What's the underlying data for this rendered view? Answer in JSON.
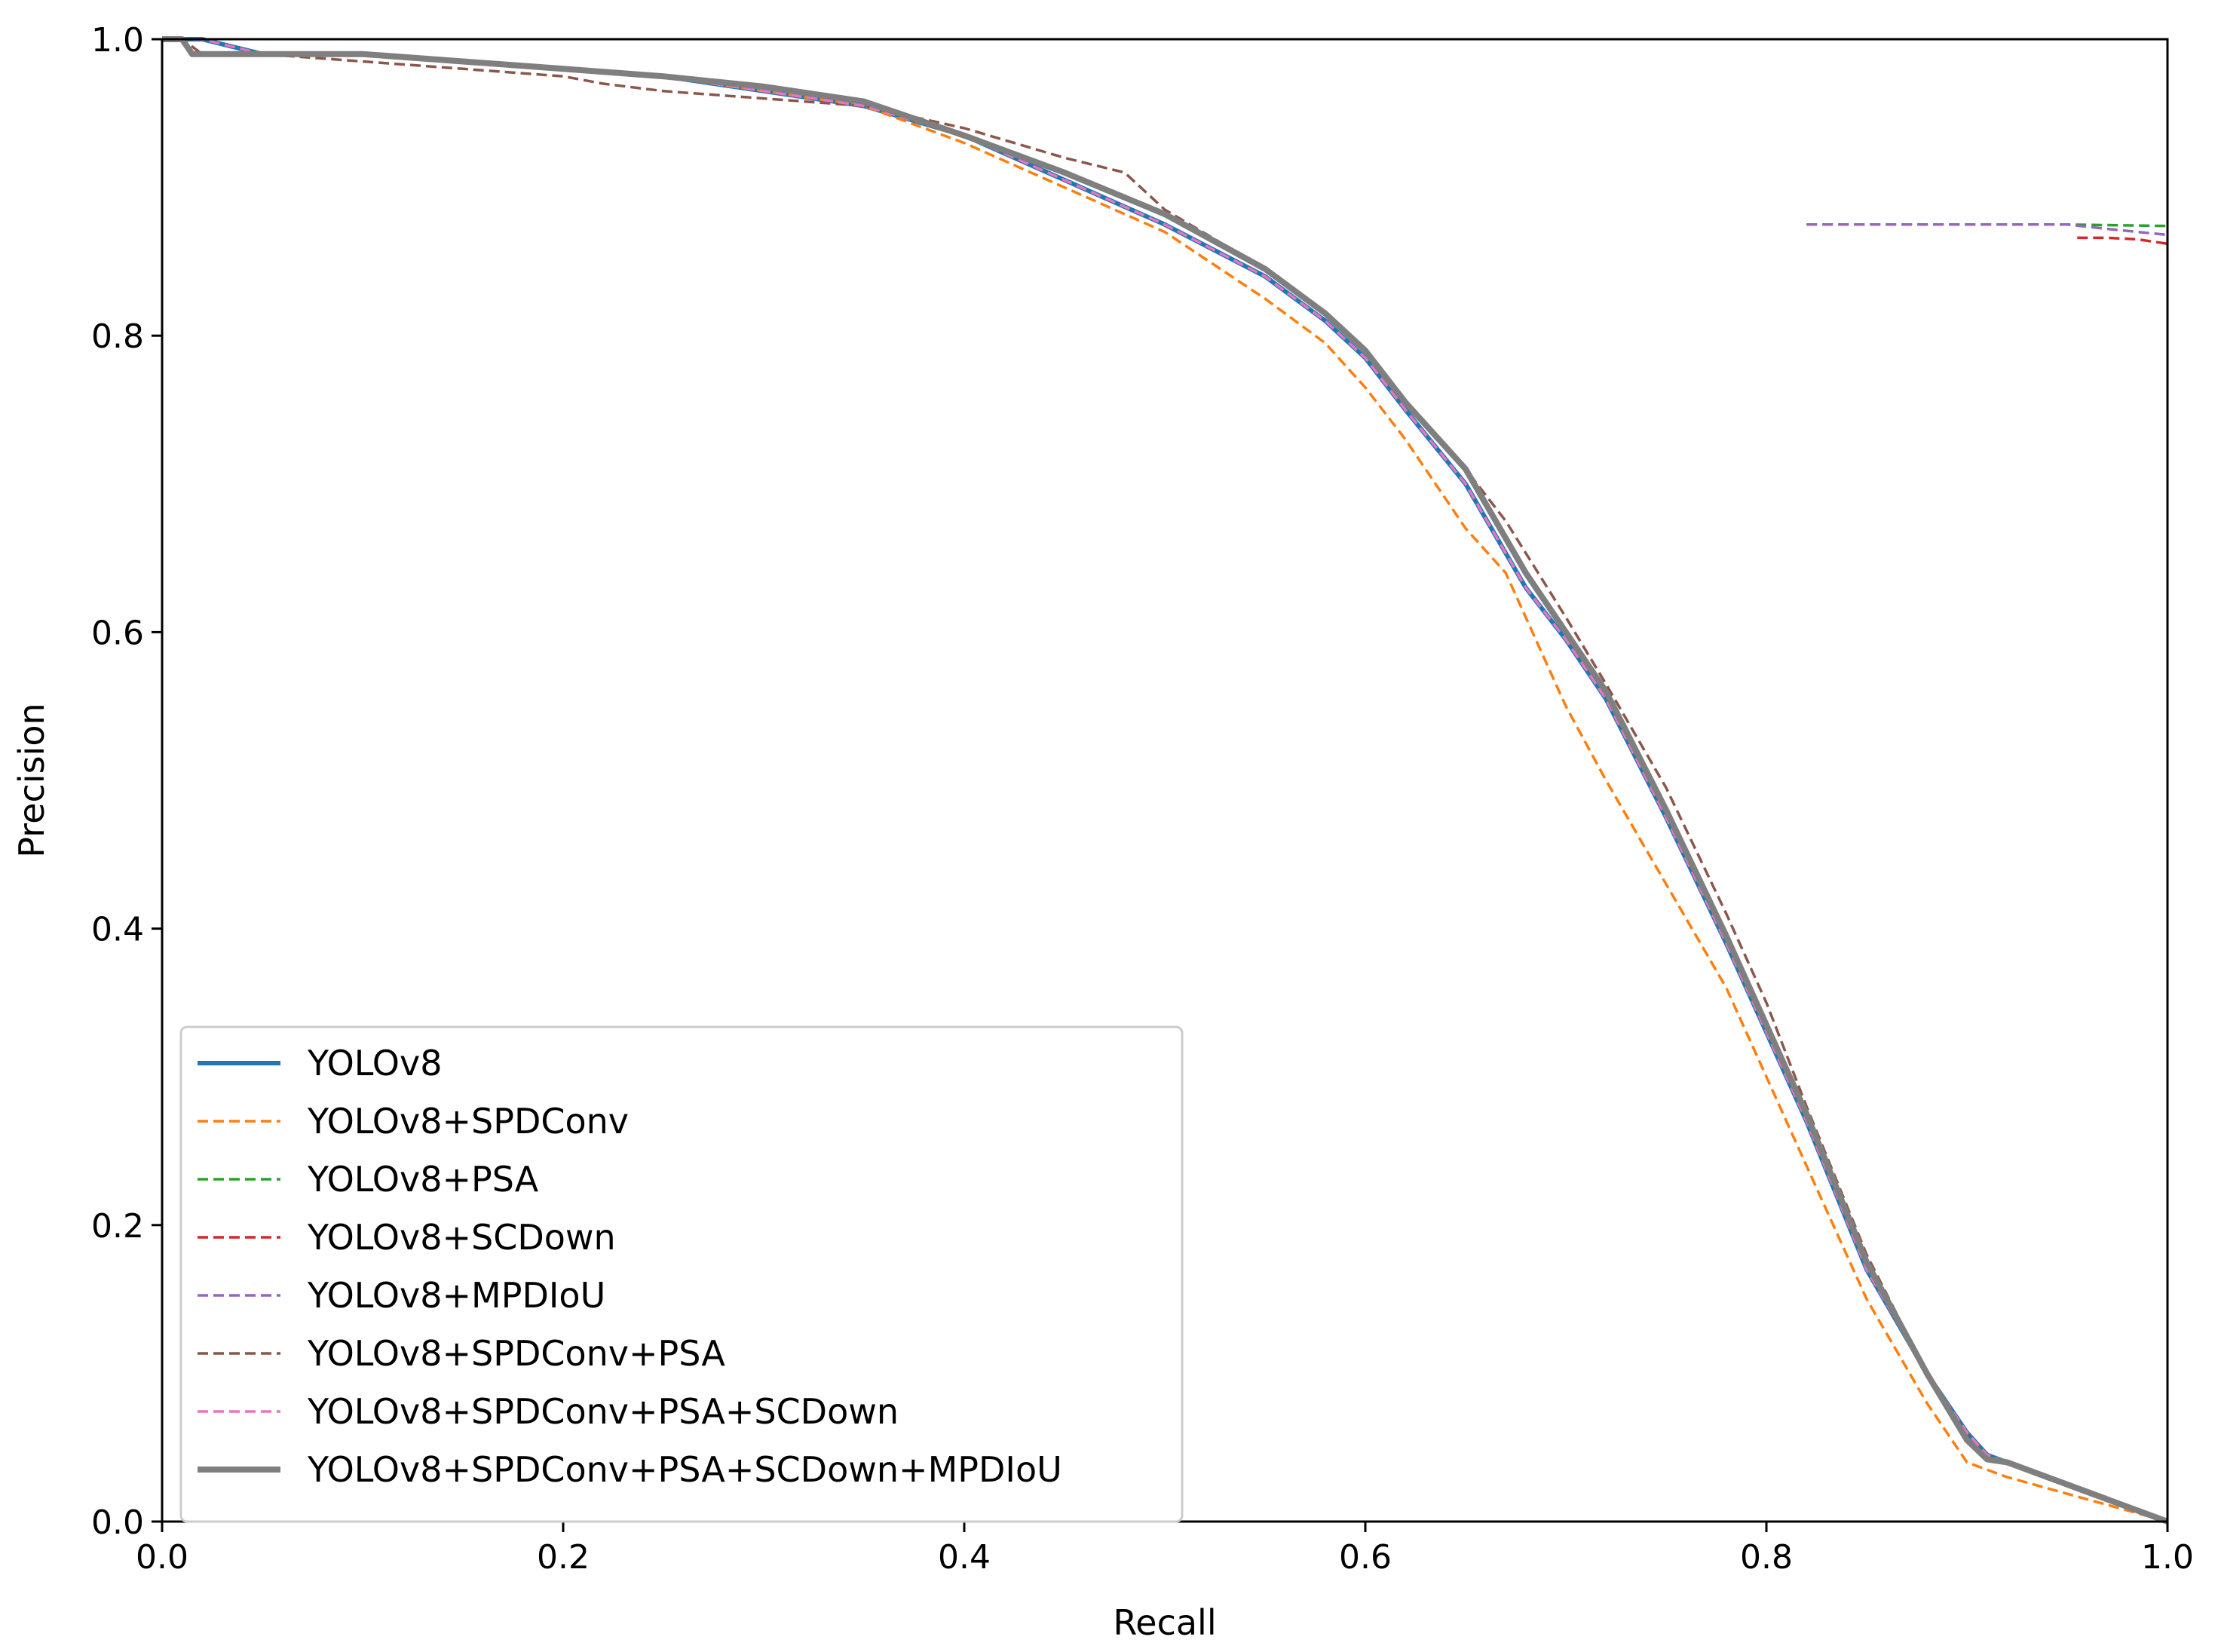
{
  "chart_data": {
    "type": "line",
    "title": "",
    "xlabel": "Recall",
    "ylabel": "Precision",
    "xlim": [
      0.0,
      1.0
    ],
    "ylim": [
      0.0,
      1.0
    ],
    "xticks": [
      "0.0",
      "0.2",
      "0.4",
      "0.6",
      "0.8",
      "1.0"
    ],
    "yticks": [
      "0.0",
      "0.2",
      "0.4",
      "0.6",
      "0.8",
      "1.0"
    ],
    "grid": false,
    "legend_position": "lower-left",
    "series": [
      {
        "name": "YOLOv8",
        "color": "#1f77b4",
        "style": "solid",
        "x": [
          0.0,
          0.01,
          0.02,
          0.05,
          0.1,
          0.15,
          0.2,
          0.25,
          0.3,
          0.35,
          0.4,
          0.45,
          0.5,
          0.55,
          0.58,
          0.6,
          0.62,
          0.65,
          0.68,
          0.7,
          0.72,
          0.75,
          0.78,
          0.8,
          0.82,
          0.85,
          0.88,
          0.9,
          0.91,
          0.92,
          1.0
        ],
        "y": [
          1.0,
          1.0,
          1.0,
          0.99,
          0.99,
          0.985,
          0.98,
          0.975,
          0.965,
          0.955,
          0.935,
          0.905,
          0.875,
          0.84,
          0.81,
          0.785,
          0.75,
          0.7,
          0.63,
          0.595,
          0.555,
          0.475,
          0.39,
          0.33,
          0.27,
          0.17,
          0.1,
          0.06,
          0.045,
          0.04,
          0.0
        ]
      },
      {
        "name": "YOLOv8+SPDConv",
        "color": "#ff7f0e",
        "style": "dashed",
        "x": [
          0.0,
          0.01,
          0.02,
          0.05,
          0.1,
          0.15,
          0.2,
          0.25,
          0.3,
          0.35,
          0.4,
          0.45,
          0.5,
          0.55,
          0.58,
          0.6,
          0.62,
          0.65,
          0.67,
          0.7,
          0.72,
          0.75,
          0.78,
          0.8,
          0.82,
          0.85,
          0.88,
          0.9,
          0.92,
          1.0
        ],
        "y": [
          1.0,
          1.0,
          0.99,
          0.99,
          0.99,
          0.985,
          0.98,
          0.975,
          0.965,
          0.955,
          0.93,
          0.9,
          0.87,
          0.825,
          0.795,
          0.765,
          0.73,
          0.67,
          0.64,
          0.55,
          0.5,
          0.43,
          0.36,
          0.3,
          0.24,
          0.15,
          0.08,
          0.04,
          0.03,
          0.0
        ]
      },
      {
        "name": "YOLOv8+PSA",
        "color": "#2ca02c",
        "style": "dashed",
        "x": [
          0.82,
          0.85,
          0.9,
          0.95,
          1.0
        ],
        "y": [
          0.875,
          0.875,
          0.875,
          0.875,
          0.874
        ]
      },
      {
        "name": "YOLOv8+SCDown",
        "color": "#d62728",
        "style": "dashed",
        "x": [
          0.955,
          0.97,
          0.985,
          1.0
        ],
        "y": [
          0.866,
          0.866,
          0.865,
          0.862
        ]
      },
      {
        "name": "YOLOv8+MPDIoU",
        "color": "#9467bd",
        "style": "dashed",
        "x": [
          0.82,
          0.85,
          0.9,
          0.95,
          0.97,
          1.0
        ],
        "y": [
          0.875,
          0.875,
          0.875,
          0.875,
          0.872,
          0.868
        ]
      },
      {
        "name": "YOLOv8+SPDConv+PSA",
        "color": "#8c564b",
        "style": "dashed",
        "x": [
          0.0,
          0.01,
          0.02,
          0.05,
          0.1,
          0.15,
          0.2,
          0.22,
          0.25,
          0.3,
          0.35,
          0.4,
          0.45,
          0.48,
          0.5,
          0.55,
          0.58,
          0.6,
          0.62,
          0.65,
          0.67,
          0.7,
          0.72,
          0.75,
          0.78,
          0.8,
          0.82,
          0.85,
          0.88,
          0.9,
          0.91,
          0.92,
          1.0
        ],
        "y": [
          1.0,
          1.0,
          0.99,
          0.99,
          0.985,
          0.98,
          0.975,
          0.97,
          0.965,
          0.96,
          0.955,
          0.94,
          0.92,
          0.91,
          0.885,
          0.845,
          0.815,
          0.79,
          0.755,
          0.71,
          0.675,
          0.61,
          0.565,
          0.495,
          0.41,
          0.35,
          0.28,
          0.18,
          0.1,
          0.06,
          0.045,
          0.04,
          0.0
        ]
      },
      {
        "name": "YOLOv8+SPDConv+PSA+SCDown",
        "color": "#e377c2",
        "style": "dashed",
        "x": [
          0.0,
          0.01,
          0.02,
          0.05,
          0.1,
          0.15,
          0.2,
          0.25,
          0.3,
          0.35,
          0.4,
          0.45,
          0.5,
          0.55,
          0.58,
          0.6,
          0.62,
          0.65,
          0.68,
          0.7,
          0.72,
          0.75,
          0.78,
          0.8,
          0.82,
          0.85,
          0.88,
          0.9,
          0.91,
          0.92,
          1.0
        ],
        "y": [
          1.0,
          1.0,
          1.0,
          0.99,
          0.99,
          0.985,
          0.98,
          0.975,
          0.965,
          0.955,
          0.935,
          0.905,
          0.875,
          0.84,
          0.81,
          0.785,
          0.75,
          0.7,
          0.63,
          0.595,
          0.555,
          0.475,
          0.39,
          0.33,
          0.27,
          0.17,
          0.1,
          0.06,
          0.045,
          0.04,
          0.0
        ]
      },
      {
        "name": "YOLOv8+SPDConv+PSA+SCDown+MPDIoU",
        "color": "#7f7f7f",
        "style": "solid-thick",
        "x": [
          0.0,
          0.01,
          0.015,
          0.05,
          0.1,
          0.15,
          0.2,
          0.25,
          0.3,
          0.35,
          0.4,
          0.45,
          0.5,
          0.55,
          0.58,
          0.6,
          0.62,
          0.65,
          0.68,
          0.7,
          0.72,
          0.75,
          0.78,
          0.8,
          0.82,
          0.85,
          0.88,
          0.9,
          0.91,
          0.92,
          1.0
        ],
        "y": [
          1.0,
          1.0,
          0.99,
          0.99,
          0.99,
          0.985,
          0.98,
          0.975,
          0.968,
          0.958,
          0.935,
          0.91,
          0.882,
          0.845,
          0.815,
          0.79,
          0.755,
          0.71,
          0.64,
          0.6,
          0.56,
          0.48,
          0.395,
          0.335,
          0.275,
          0.175,
          0.1,
          0.055,
          0.042,
          0.04,
          0.0
        ]
      }
    ]
  }
}
